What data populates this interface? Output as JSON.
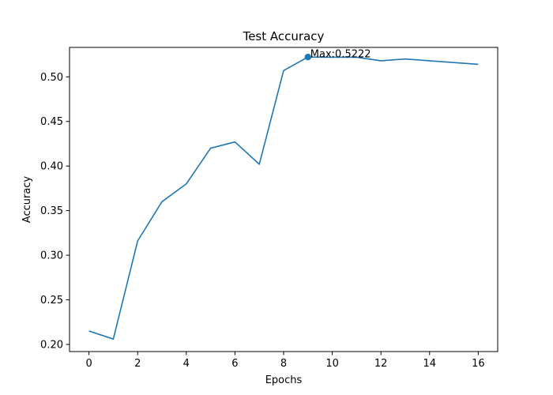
{
  "chart_data": {
    "type": "line",
    "title": "Test Accuracy",
    "xlabel": "Epochs",
    "ylabel": "Accuracy",
    "xlim": [
      -0.8,
      16.8
    ],
    "ylim": [
      0.192,
      0.533
    ],
    "xticks": [
      0,
      2,
      4,
      6,
      8,
      10,
      12,
      14,
      16
    ],
    "yticks": [
      0.2,
      0.25,
      0.3,
      0.35,
      0.4,
      0.45,
      0.5
    ],
    "ytick_labels": [
      "0.20",
      "0.25",
      "0.30",
      "0.35",
      "0.40",
      "0.45",
      "0.50"
    ],
    "grid": false,
    "series": [
      {
        "color": "#1f77b4",
        "x": [
          0,
          1,
          2,
          3,
          4,
          5,
          6,
          7,
          8,
          9,
          10,
          11,
          12,
          13,
          14,
          15,
          16
        ],
        "values": [
          0.215,
          0.206,
          0.316,
          0.36,
          0.38,
          0.42,
          0.427,
          0.402,
          0.507,
          0.5222,
          0.522,
          0.522,
          0.518,
          0.52,
          0.518,
          0.516,
          0.514
        ]
      }
    ],
    "annotation": {
      "text": "Max:0.5222",
      "x": 9,
      "y": 0.5222
    }
  }
}
